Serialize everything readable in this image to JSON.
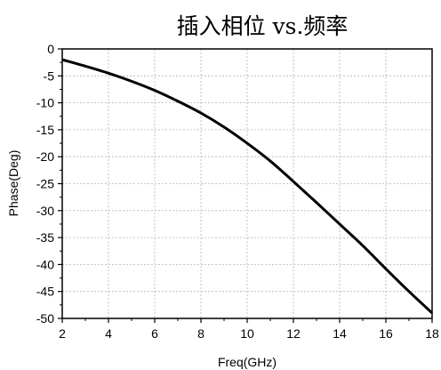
{
  "chart_data": {
    "type": "line",
    "title": "插入相位 vs.频率",
    "xlabel": "Freq(GHz)",
    "ylabel": "Phase(Deg)",
    "xlim": [
      2,
      18
    ],
    "ylim": [
      -50,
      0
    ],
    "xticks": [
      "2",
      "4",
      "6",
      "8",
      "10",
      "12",
      "14",
      "16",
      "18"
    ],
    "yticks": [
      "0",
      "-5",
      "-10",
      "-15",
      "-20",
      "-25",
      "-30",
      "-35",
      "-40",
      "-45",
      "-50"
    ],
    "grid": true,
    "line_color": "#000000",
    "series": [
      {
        "x": [
          2,
          3,
          4,
          5,
          6,
          7,
          8,
          9,
          10,
          11,
          12,
          13,
          14,
          15,
          16,
          17,
          18
        ],
        "y": [
          -2.0,
          -3.2,
          -4.5,
          -6.0,
          -7.7,
          -9.7,
          -11.9,
          -14.5,
          -17.5,
          -20.8,
          -24.6,
          -28.5,
          -32.5,
          -36.5,
          -40.8,
          -45.0,
          -49.0
        ]
      }
    ]
  }
}
